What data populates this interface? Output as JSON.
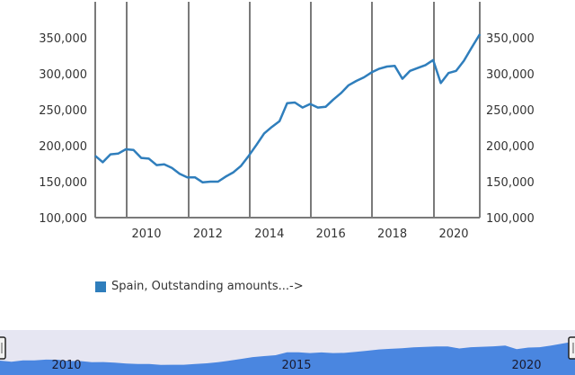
{
  "chart_data": {
    "type": "line",
    "title": "",
    "xlabel": "",
    "ylabel": "",
    "ylim": [
      100000,
      350000
    ],
    "y_ticks": [
      "100,000",
      "150,000",
      "200,000",
      "250,000",
      "300,000",
      "350,000"
    ],
    "x_ticks": [
      "2010",
      "2012",
      "2014",
      "2016",
      "2018",
      "2020"
    ],
    "grid": "vertical",
    "legend_position": "bottom-left",
    "series": [
      {
        "name": "Spain, Outstanding amounts...->",
        "color": "#2f7ebc",
        "x": [
          2008.33,
          2008.58,
          2008.83,
          2009.08,
          2009.33,
          2009.58,
          2009.83,
          2010.08,
          2010.33,
          2010.58,
          2010.83,
          2011.08,
          2011.33,
          2011.58,
          2011.83,
          2012.08,
          2012.33,
          2012.58,
          2012.83,
          2013.08,
          2013.33,
          2013.58,
          2013.83,
          2014.08,
          2014.33,
          2014.58,
          2014.83,
          2015.08,
          2015.33,
          2015.58,
          2015.83,
          2016.08,
          2016.33,
          2016.58,
          2016.83,
          2017.08,
          2017.33,
          2017.58,
          2017.83,
          2018.08,
          2018.33,
          2018.58,
          2018.83,
          2019.08,
          2019.33,
          2019.58,
          2019.83,
          2020.08,
          2020.33,
          2020.58,
          2020.85
        ],
        "values": [
          186000,
          177000,
          188000,
          189000,
          195000,
          194000,
          183000,
          182000,
          173000,
          174000,
          169000,
          161000,
          156000,
          156000,
          149000,
          150000,
          150000,
          157000,
          163000,
          172000,
          186000,
          201000,
          217000,
          226000,
          234000,
          259000,
          260000,
          253000,
          258000,
          253000,
          254000,
          264000,
          273000,
          284000,
          290000,
          295000,
          302000,
          307000,
          310000,
          311000,
          293000,
          304000,
          308000,
          312000,
          319000,
          287000,
          301000,
          304000,
          318000,
          336000,
          355000
        ]
      }
    ]
  },
  "legend": {
    "label": "Spain, Outstanding amounts...->",
    "color": "#2f7ebc"
  },
  "navigator": {
    "labels": [
      "2010",
      "2015",
      "2020"
    ],
    "fill_color": "#4a86e0",
    "bg_color": "#e6e6f2"
  }
}
